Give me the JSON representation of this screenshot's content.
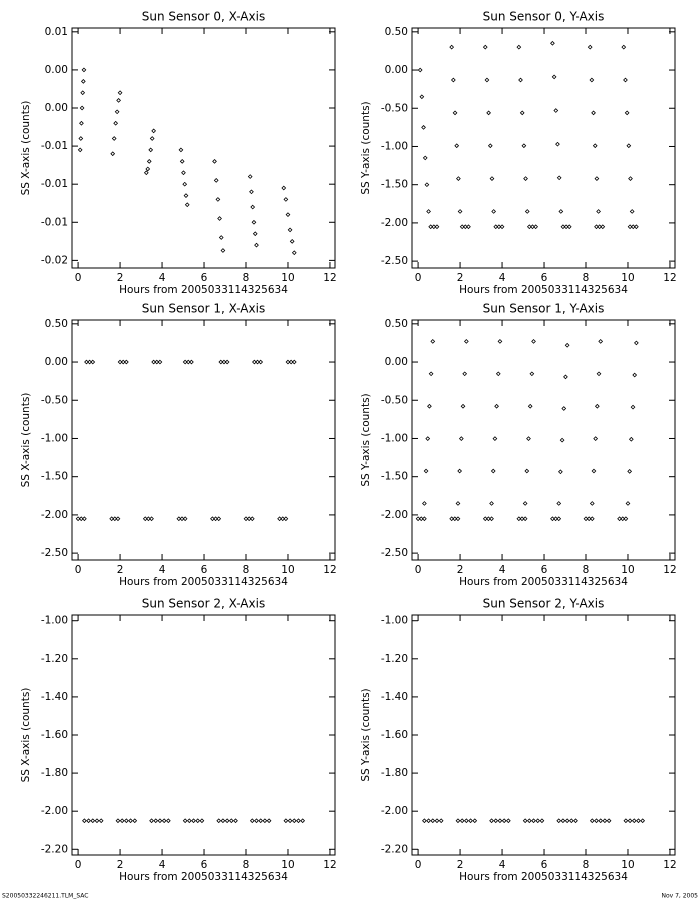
{
  "footer": {
    "left": "S20050332246211.TLM_SAC",
    "right": "Nov  7, 2005"
  },
  "chart_data": [
    {
      "type": "scatter",
      "title": "Sun Sensor 0, X-Axis",
      "xlabel": "Hours from 2005033114325634",
      "ylabel": "SS X-axis (counts)",
      "color": "#000000",
      "xlim": [
        -0.29,
        12.24
      ],
      "xticks": [
        0,
        2,
        4,
        6,
        8,
        10,
        12
      ],
      "ylim": [
        -0.021,
        0.0105
      ],
      "yticks": [
        0.01,
        {
          "value": 0.005,
          "label": "0.00"
        },
        {
          "value": 0,
          "label": "0.00"
        },
        {
          "value": -0.005,
          "label": "-0.01"
        },
        -0.01,
        {
          "value": -0.015,
          "label": "-0.01"
        },
        -0.02
      ],
      "x": [
        0.1,
        0.13,
        0.16,
        0.19,
        0.22,
        0.25,
        0.28,
        1.65,
        1.72,
        1.79,
        1.86,
        1.93,
        2.0,
        3.25,
        3.32,
        3.39,
        3.46,
        3.53,
        3.6,
        4.9,
        4.96,
        5.02,
        5.08,
        5.14,
        5.2,
        6.5,
        6.58,
        6.66,
        6.74,
        6.82,
        6.9,
        8.2,
        8.26,
        8.32,
        8.38,
        8.44,
        8.5,
        9.8,
        9.9,
        10.0,
        10.1,
        10.2,
        10.3
      ],
      "values": [
        -0.0055,
        -0.004,
        -0.002,
        0.0,
        0.002,
        0.0035,
        0.005,
        -0.006,
        -0.004,
        -0.002,
        -0.0005,
        0.001,
        0.002,
        -0.0085,
        -0.008,
        -0.007,
        -0.0055,
        -0.004,
        -0.003,
        -0.0055,
        -0.007,
        -0.0085,
        -0.01,
        -0.0115,
        -0.0127,
        -0.007,
        -0.0095,
        -0.012,
        -0.0145,
        -0.017,
        -0.0187,
        -0.009,
        -0.011,
        -0.013,
        -0.015,
        -0.0165,
        -0.018,
        -0.0105,
        -0.012,
        -0.014,
        -0.016,
        -0.0175,
        -0.019
      ]
    },
    {
      "type": "scatter",
      "title": "Sun Sensor 0, Y-Axis",
      "xlabel": "Hours from 2005033114325634",
      "ylabel": "SS Y-axis (counts)",
      "color": "#000000",
      "xlim": [
        -0.29,
        12.24
      ],
      "xticks": [
        0,
        2,
        4,
        6,
        8,
        10,
        12
      ],
      "ylim": [
        -2.59,
        0.55
      ],
      "yticks": [
        {
          "value": 0.5,
          "label": "0.50"
        },
        {
          "value": 0,
          "label": "0.00"
        },
        {
          "value": -0.5,
          "label": "-0.50"
        },
        {
          "value": -1,
          "label": "-1.00"
        },
        {
          "value": -1.5,
          "label": "-1.50"
        },
        {
          "value": -2,
          "label": "-2.00"
        },
        {
          "value": -2.5,
          "label": "-2.50"
        }
      ],
      "x": [
        0.1,
        0.18,
        0.26,
        0.34,
        0.42,
        0.5,
        1.6,
        1.68,
        1.76,
        1.84,
        1.92,
        2.0,
        3.2,
        3.28,
        3.36,
        3.44,
        3.52,
        3.6,
        4.8,
        4.88,
        4.96,
        5.04,
        5.12,
        5.2,
        6.4,
        6.48,
        6.56,
        6.64,
        6.72,
        6.8,
        8.2,
        8.28,
        8.36,
        8.44,
        8.52,
        8.6,
        9.8,
        9.88,
        9.96,
        10.04,
        10.12,
        10.2,
        0.6,
        0.75,
        0.9,
        2.1,
        2.25,
        2.4,
        3.7,
        3.85,
        4.0,
        5.3,
        5.45,
        5.6,
        6.9,
        7.05,
        7.2,
        8.5,
        8.65,
        8.8,
        10.1,
        10.25,
        10.4
      ],
      "values": [
        0.0,
        -0.35,
        -0.75,
        -1.15,
        -1.5,
        -1.85,
        0.3,
        -0.13,
        -0.56,
        -0.99,
        -1.42,
        -1.85,
        0.3,
        -0.13,
        -0.56,
        -0.99,
        -1.42,
        -1.85,
        0.3,
        -0.13,
        -0.56,
        -0.99,
        -1.42,
        -1.85,
        0.35,
        -0.09,
        -0.53,
        -0.97,
        -1.41,
        -1.85,
        0.3,
        -0.13,
        -0.56,
        -0.99,
        -1.42,
        -1.85,
        0.3,
        -0.13,
        -0.56,
        -0.99,
        -1.42,
        -1.85,
        -2.05,
        -2.05,
        -2.05,
        -2.05,
        -2.05,
        -2.05,
        -2.05,
        -2.05,
        -2.05,
        -2.05,
        -2.05,
        -2.05,
        -2.05,
        -2.05,
        -2.05,
        -2.05,
        -2.05,
        -2.05,
        -2.05,
        -2.05,
        -2.05
      ]
    },
    {
      "type": "scatter",
      "title": "Sun Sensor 1, X-Axis",
      "xlabel": "Hours from 2005033114325634",
      "ylabel": "SS X-axis (counts)",
      "color": "#000000",
      "xlim": [
        -0.29,
        12.24
      ],
      "xticks": [
        0,
        2,
        4,
        6,
        8,
        10,
        12
      ],
      "ylim": [
        -2.59,
        0.55
      ],
      "yticks": [
        {
          "value": 0.5,
          "label": "0.50"
        },
        {
          "value": 0,
          "label": "0.00"
        },
        {
          "value": -0.5,
          "label": "-0.50"
        },
        {
          "value": -1,
          "label": "-1.00"
        },
        {
          "value": -1.5,
          "label": "-1.50"
        },
        {
          "value": -2,
          "label": "-2.00"
        },
        {
          "value": -2.5,
          "label": "-2.50"
        }
      ],
      "x": [
        0.4,
        0.55,
        0.7,
        2.0,
        2.15,
        2.3,
        3.6,
        3.75,
        3.9,
        5.1,
        5.25,
        5.4,
        6.8,
        6.95,
        7.1,
        8.4,
        8.55,
        8.7,
        10.0,
        10.15,
        10.3,
        0.0,
        0.15,
        0.3,
        1.6,
        1.75,
        1.9,
        3.2,
        3.35,
        3.5,
        4.8,
        4.95,
        5.1,
        6.4,
        6.55,
        6.7,
        8.0,
        8.15,
        8.3,
        9.6,
        9.75,
        9.9
      ],
      "values": [
        0,
        0,
        0,
        0,
        0,
        0,
        0,
        0,
        0,
        0,
        0,
        0,
        0,
        0,
        0,
        0,
        0,
        0,
        0,
        0,
        0,
        -2.05,
        -2.05,
        -2.05,
        -2.05,
        -2.05,
        -2.05,
        -2.05,
        -2.05,
        -2.05,
        -2.05,
        -2.05,
        -2.05,
        -2.05,
        -2.05,
        -2.05,
        -2.05,
        -2.05,
        -2.05,
        -2.05,
        -2.05,
        -2.05
      ]
    },
    {
      "type": "scatter",
      "title": "Sun Sensor 1, Y-Axis",
      "xlabel": "Hours from 2005033114325634",
      "ylabel": "SS Y-axis (counts)",
      "color": "#000000",
      "xlim": [
        -0.29,
        12.24
      ],
      "xticks": [
        0,
        2,
        4,
        6,
        8,
        10,
        12
      ],
      "ylim": [
        -2.59,
        0.55
      ],
      "yticks": [
        {
          "value": 0.5,
          "label": "0.50"
        },
        {
          "value": 0,
          "label": "0.00"
        },
        {
          "value": -0.5,
          "label": "-0.50"
        },
        {
          "value": -1,
          "label": "-1.00"
        },
        {
          "value": -1.5,
          "label": "-1.50"
        },
        {
          "value": -2,
          "label": "-2.00"
        },
        {
          "value": -2.5,
          "label": "-2.50"
        }
      ],
      "x": [
        0.3,
        0.38,
        0.46,
        0.54,
        0.62,
        0.7,
        1.9,
        1.98,
        2.06,
        2.14,
        2.22,
        2.3,
        3.5,
        3.58,
        3.66,
        3.74,
        3.82,
        3.9,
        5.1,
        5.18,
        5.26,
        5.34,
        5.42,
        5.5,
        6.7,
        6.78,
        6.86,
        6.94,
        7.02,
        7.1,
        8.3,
        8.38,
        8.46,
        8.54,
        8.62,
        8.7,
        10.0,
        10.08,
        10.16,
        10.24,
        10.32,
        10.4,
        0.0,
        0.15,
        0.3,
        1.6,
        1.75,
        1.9,
        3.2,
        3.35,
        3.5,
        4.8,
        4.95,
        5.1,
        6.4,
        6.55,
        6.7,
        8.0,
        8.15,
        8.3,
        9.6,
        9.75,
        9.9
      ],
      "values": [
        -1.85,
        -1.426,
        -1.002,
        -0.578,
        -0.154,
        0.27,
        -1.85,
        -1.426,
        -1.002,
        -0.578,
        -0.154,
        0.27,
        -1.85,
        -1.426,
        -1.002,
        -0.578,
        -0.154,
        0.27,
        -1.85,
        -1.426,
        -1.002,
        -0.578,
        -0.154,
        0.27,
        -1.85,
        -1.436,
        -1.022,
        -0.608,
        -0.194,
        0.22,
        -1.85,
        -1.426,
        -1.002,
        -0.578,
        -0.154,
        0.27,
        -1.85,
        -1.43,
        -1.01,
        -0.59,
        -0.17,
        0.25,
        -2.05,
        -2.05,
        -2.05,
        -2.05,
        -2.05,
        -2.05,
        -2.05,
        -2.05,
        -2.05,
        -2.05,
        -2.05,
        -2.05,
        -2.05,
        -2.05,
        -2.05,
        -2.05,
        -2.05,
        -2.05,
        -2.05,
        -2.05,
        -2.05
      ]
    },
    {
      "type": "scatter",
      "title": "Sun Sensor 2, X-Axis",
      "xlabel": "Hours from 2005033114325634",
      "ylabel": "SS X-axis (counts)",
      "color": "#000000",
      "xlim": [
        -0.29,
        12.24
      ],
      "xticks": [
        0,
        2,
        4,
        6,
        8,
        10,
        12
      ],
      "ylim": [
        -2.23,
        -0.97
      ],
      "yticks": [
        {
          "value": -1,
          "label": "-1.00"
        },
        {
          "value": -1.2,
          "label": "-1.20"
        },
        {
          "value": -1.4,
          "label": "-1.40"
        },
        {
          "value": -1.6,
          "label": "-1.60"
        },
        {
          "value": -1.8,
          "label": "-1.80"
        },
        {
          "value": -2,
          "label": "-2.00"
        },
        {
          "value": -2.2,
          "label": "-2.20"
        }
      ],
      "x": [
        0.3,
        0.5,
        0.7,
        0.9,
        1.1,
        1.9,
        2.1,
        2.3,
        2.5,
        2.7,
        3.5,
        3.7,
        3.9,
        4.1,
        4.3,
        5.1,
        5.3,
        5.5,
        5.7,
        5.9,
        6.7,
        6.9,
        7.1,
        7.3,
        7.5,
        8.3,
        8.5,
        8.7,
        8.9,
        9.1,
        9.9,
        10.1,
        10.3,
        10.5,
        10.7
      ],
      "values": [
        -2.05,
        -2.05,
        -2.05,
        -2.05,
        -2.05,
        -2.05,
        -2.05,
        -2.05,
        -2.05,
        -2.05,
        -2.05,
        -2.05,
        -2.05,
        -2.05,
        -2.05,
        -2.05,
        -2.05,
        -2.05,
        -2.05,
        -2.05,
        -2.05,
        -2.05,
        -2.05,
        -2.05,
        -2.05,
        -2.05,
        -2.05,
        -2.05,
        -2.05,
        -2.05,
        -2.05,
        -2.05,
        -2.05,
        -2.05,
        -2.05
      ]
    },
    {
      "type": "scatter",
      "title": "Sun Sensor 2, Y-Axis",
      "xlabel": "Hours from 2005033114325634",
      "ylabel": "SS Y-axis (counts)",
      "color": "#000000",
      "xlim": [
        -0.29,
        12.24
      ],
      "xticks": [
        0,
        2,
        4,
        6,
        8,
        10,
        12
      ],
      "ylim": [
        -2.23,
        -0.97
      ],
      "yticks": [
        {
          "value": -1,
          "label": "-1.00"
        },
        {
          "value": -1.2,
          "label": "-1.20"
        },
        {
          "value": -1.4,
          "label": "-1.40"
        },
        {
          "value": -1.6,
          "label": "-1.60"
        },
        {
          "value": -1.8,
          "label": "-1.80"
        },
        {
          "value": -2,
          "label": "-2.00"
        },
        {
          "value": -2.2,
          "label": "-2.20"
        }
      ],
      "x": [
        0.3,
        0.5,
        0.7,
        0.9,
        1.1,
        1.9,
        2.1,
        2.3,
        2.5,
        2.7,
        3.5,
        3.7,
        3.9,
        4.1,
        4.3,
        5.1,
        5.3,
        5.5,
        5.7,
        5.9,
        6.7,
        6.9,
        7.1,
        7.3,
        7.5,
        8.3,
        8.5,
        8.7,
        8.9,
        9.1,
        9.9,
        10.1,
        10.3,
        10.5,
        10.7
      ],
      "values": [
        -2.05,
        -2.05,
        -2.05,
        -2.05,
        -2.05,
        -2.05,
        -2.05,
        -2.05,
        -2.05,
        -2.05,
        -2.05,
        -2.05,
        -2.05,
        -2.05,
        -2.05,
        -2.05,
        -2.05,
        -2.05,
        -2.05,
        -2.05,
        -2.05,
        -2.05,
        -2.05,
        -2.05,
        -2.05,
        -2.05,
        -2.05,
        -2.05,
        -2.05,
        -2.05,
        -2.05,
        -2.05,
        -2.05,
        -2.05,
        -2.05
      ]
    }
  ]
}
